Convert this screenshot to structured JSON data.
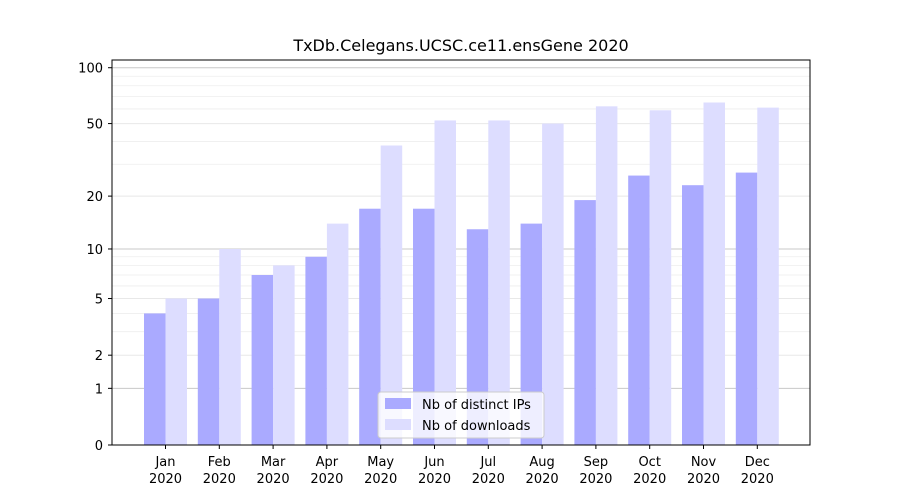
{
  "chart_data": {
    "type": "bar",
    "title": "TxDb.Celegans.UCSC.ce11.ensGene 2020",
    "xlabel": "",
    "ylabel": "",
    "y_scale": "log1p",
    "ylim": [
      0,
      110
    ],
    "y_ticks": [
      0,
      1,
      2,
      5,
      10,
      20,
      50,
      100
    ],
    "grid": "horizontal",
    "legend_position": "bottom-center",
    "categories": [
      [
        "Jan",
        "2020"
      ],
      [
        "Feb",
        "2020"
      ],
      [
        "Mar",
        "2020"
      ],
      [
        "Apr",
        "2020"
      ],
      [
        "May",
        "2020"
      ],
      [
        "Jun",
        "2020"
      ],
      [
        "Jul",
        "2020"
      ],
      [
        "Aug",
        "2020"
      ],
      [
        "Sep",
        "2020"
      ],
      [
        "Oct",
        "2020"
      ],
      [
        "Nov",
        "2020"
      ],
      [
        "Dec",
        "2020"
      ]
    ],
    "series": [
      {
        "name": "Nb of distinct IPs",
        "color": "#aaaaff",
        "values": [
          4,
          5,
          7,
          9,
          17,
          17,
          13,
          14,
          19,
          26,
          23,
          27
        ]
      },
      {
        "name": "Nb of downloads",
        "color": "#ddddff",
        "values": [
          5,
          10,
          8,
          14,
          38,
          52,
          52,
          50,
          62,
          59,
          65,
          61
        ]
      }
    ]
  }
}
